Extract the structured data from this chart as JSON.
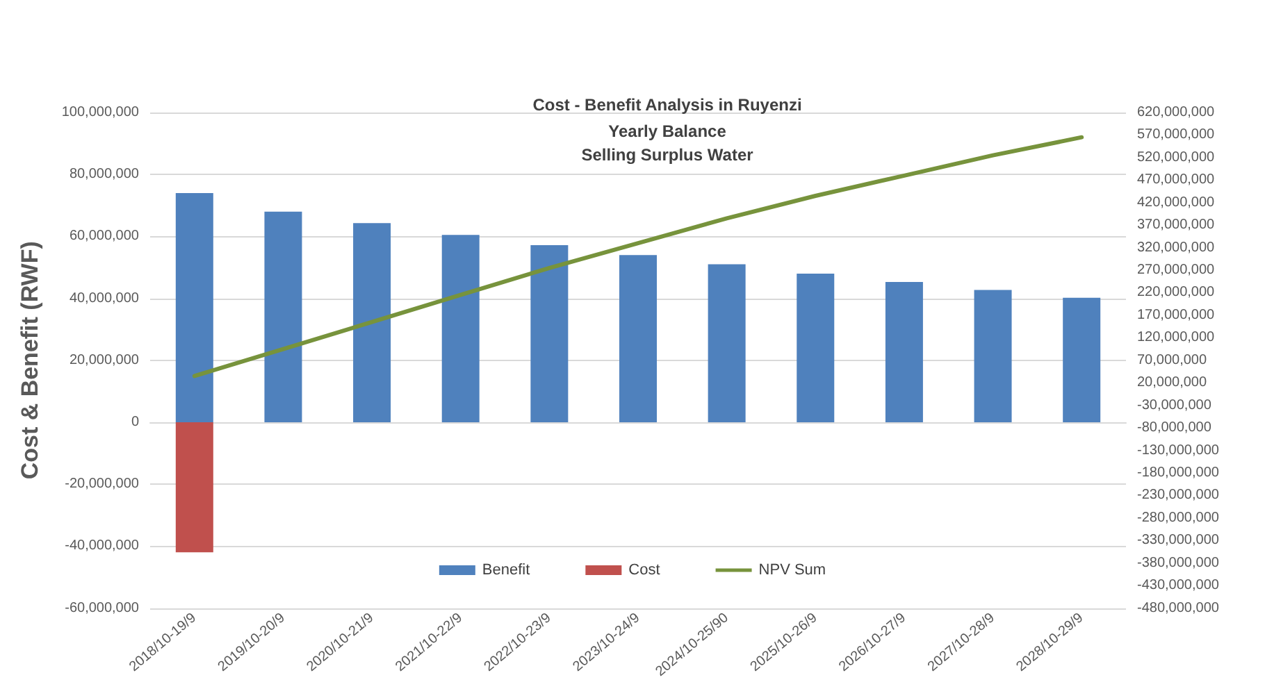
{
  "chart_data": {
    "type": "bar",
    "title": "Cost - Benefit Analysis in Ruyenzi",
    "subtitle": "Yearly Balance\nSelling Surplus Water",
    "ylabel": "Cost & Benefit (RWF)",
    "categories": [
      "2018/10-19/9",
      "2019/10-20/9",
      "2020/10-21/9",
      "2021/10-22/9",
      "2022/10-23/9",
      "2023/10-24/9",
      "2024/10-25/90",
      "2025/10-26/9",
      "2026/10-27/9",
      "2027/10-28/9",
      "2028/10-29/9"
    ],
    "stacked": true,
    "series": [
      {
        "name": "Benefit",
        "color": "#4f81bd",
        "values": [
          74000000,
          68000000,
          64300000,
          60500000,
          57200000,
          54000000,
          51000000,
          48000000,
          45300000,
          42700000,
          40200000
        ]
      },
      {
        "name": "Cost",
        "color": "#c0504d",
        "values": [
          -42000000,
          0,
          0,
          0,
          0,
          0,
          0,
          0,
          0,
          0,
          0
        ]
      },
      {
        "name": "NPV Sum",
        "type": "line",
        "axis": "y2",
        "color": "#77933c",
        "values": [
          35000000,
          95000000,
          155000000,
          215000000,
          275000000,
          330000000,
          385000000,
          435000000,
          480000000,
          525000000,
          565000000
        ]
      }
    ],
    "ylim": [
      -60000000,
      100000000
    ],
    "yticks": [
      {
        "value": -60000000,
        "label": "-60,000,000"
      },
      {
        "value": -40000000,
        "label": "-40,000,000"
      },
      {
        "value": -20000000,
        "label": "-20,000,000"
      },
      0,
      {
        "value": 20000000,
        "label": "20,000,000"
      },
      {
        "value": 40000000,
        "label": "40,000,000"
      },
      {
        "value": 60000000,
        "label": "60,000,000"
      },
      {
        "value": 80000000,
        "label": "80,000,000"
      },
      {
        "value": 100000000,
        "label": "100,000,000"
      }
    ],
    "y2lim": [
      -480000000,
      620000000
    ],
    "y2ticks": [
      {
        "value": -480000000,
        "label": "-480,000,000"
      },
      {
        "value": -430000000,
        "label": "-430,000,000"
      },
      {
        "value": -380000000,
        "label": "-380,000,000"
      },
      {
        "value": -330000000,
        "label": "-330,000,000"
      },
      {
        "value": -280000000,
        "label": "-280,000,000"
      },
      {
        "value": -230000000,
        "label": "-230,000,000"
      },
      {
        "value": -180000000,
        "label": "-180,000,000"
      },
      {
        "value": -130000000,
        "label": "-130,000,000"
      },
      {
        "value": -80000000,
        "label": "-80,000,000"
      },
      {
        "value": -30000000,
        "label": "-30,000,000"
      },
      {
        "value": 20000000,
        "label": "20,000,000"
      },
      {
        "value": 70000000,
        "label": "70,000,000"
      },
      {
        "value": 120000000,
        "label": "120,000,000"
      },
      {
        "value": 170000000,
        "label": "170,000,000"
      },
      {
        "value": 220000000,
        "label": "220,000,000"
      },
      {
        "value": 270000000,
        "label": "270,000,000"
      },
      {
        "value": 320000000,
        "label": "320,000,000"
      },
      {
        "value": 370000000,
        "label": "370,000,000"
      },
      {
        "value": 420000000,
        "label": "420,000,000"
      },
      {
        "value": 470000000,
        "label": "470,000,000"
      },
      {
        "value": 520000000,
        "label": "520,000,000"
      },
      {
        "value": 570000000,
        "label": "570,000,000"
      },
      {
        "value": 620000000,
        "label": "620,000,000"
      }
    ],
    "grid": "y",
    "legend": "bottom",
    "marker": "none",
    "line_style": "solid"
  }
}
